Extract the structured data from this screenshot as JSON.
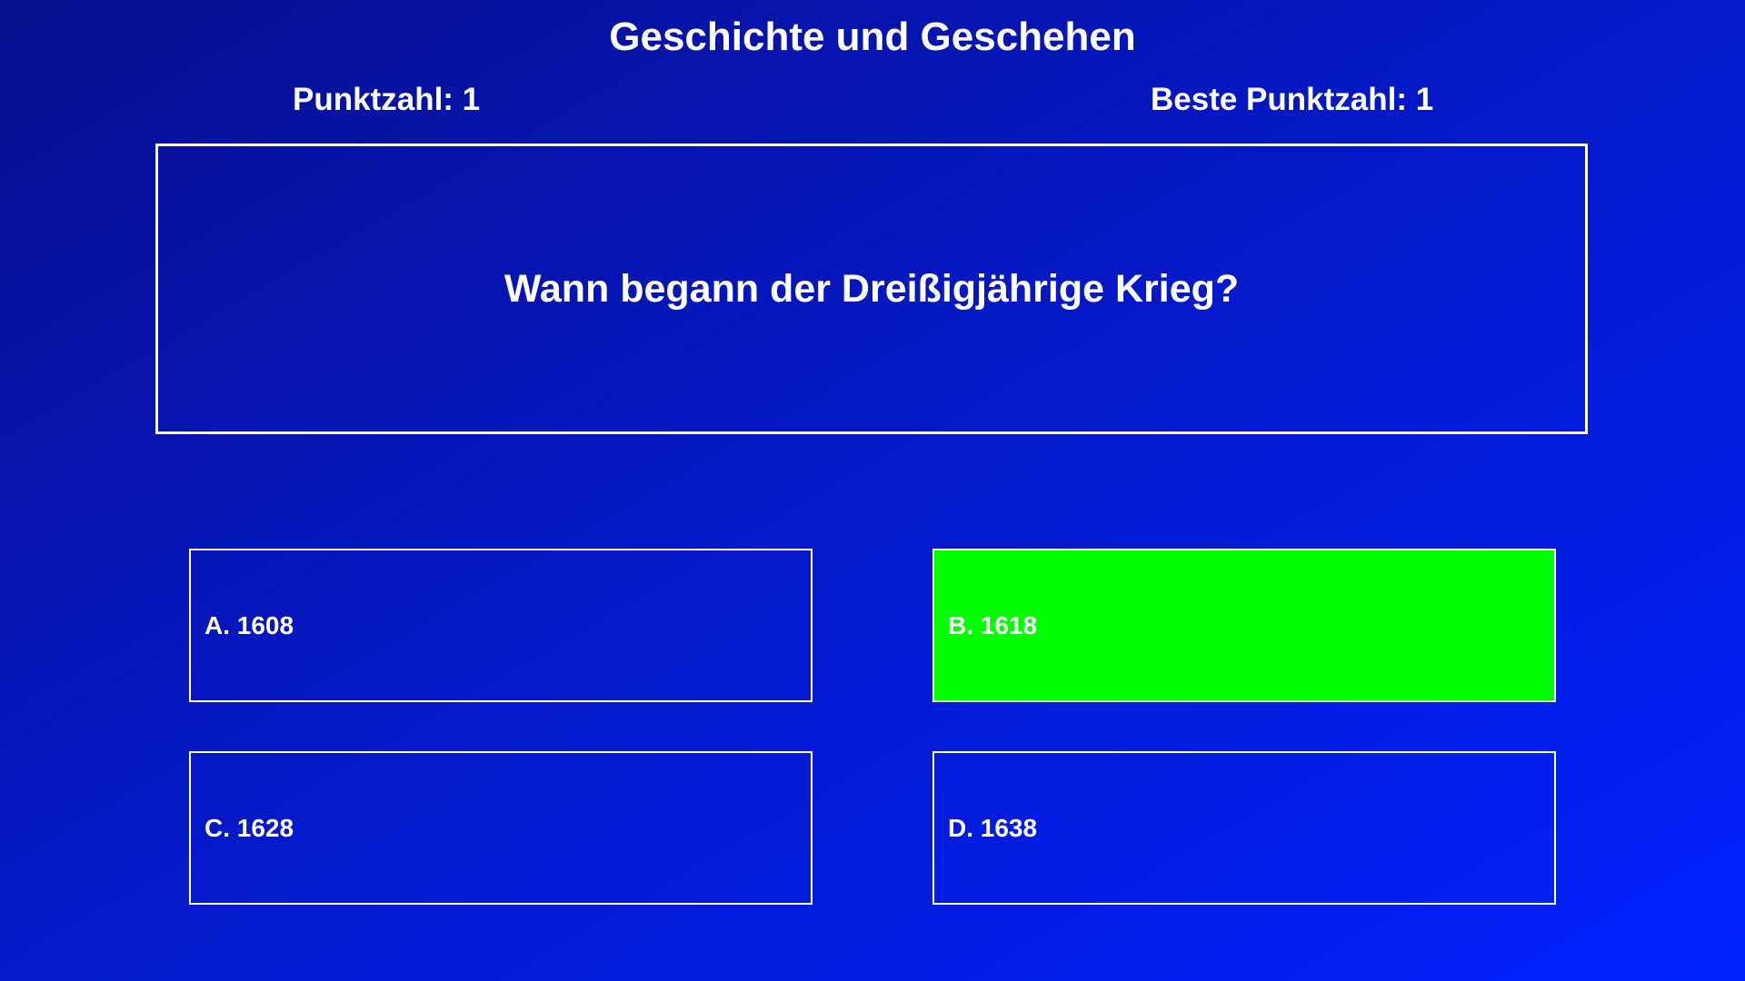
{
  "title": "Geschichte und Geschehen",
  "score": "Punktzahl: 1",
  "best_score": "Beste Punktzahl: 1",
  "question": "Wann begann der Dreißigjährige Krieg?",
  "answers": [
    {
      "label": "A. 1608",
      "state": "default"
    },
    {
      "label": "B. 1618",
      "state": "correct"
    },
    {
      "label": "C. 1628",
      "state": "default"
    },
    {
      "label": "D. 1638",
      "state": "default"
    }
  ],
  "colors": {
    "correct": "#00ff00",
    "background_start": "#080f8e",
    "background_end": "#0022ff"
  }
}
